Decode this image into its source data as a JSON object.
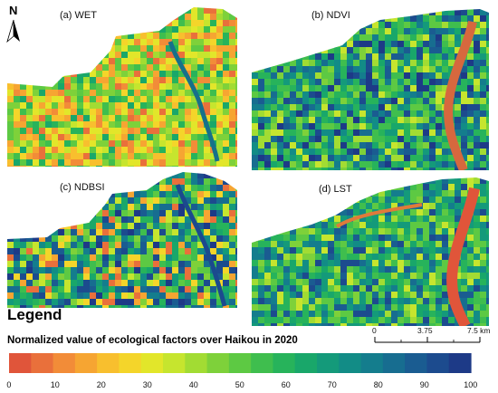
{
  "panels": [
    {
      "id": "wet",
      "label": "(a) WET",
      "palette": "warm"
    },
    {
      "id": "ndvi",
      "label": "(b) NDVI",
      "palette": "cool"
    },
    {
      "id": "ndbsi",
      "label": "(c) NDBSI",
      "palette": "mixed"
    },
    {
      "id": "lst",
      "label": "(d) LST",
      "palette": "green"
    }
  ],
  "north_arrow": {
    "label": "N"
  },
  "scale_bar": {
    "labels": [
      "0",
      "3.75",
      "7.5 km"
    ]
  },
  "legend": {
    "title": "Legend",
    "subtitle": "Normalized value of ecological factors over Haikou in 2020",
    "tick_labels": [
      "0",
      "10",
      "20",
      "30",
      "40",
      "50",
      "60",
      "70",
      "80",
      "90",
      "100"
    ],
    "colors": [
      "#e0553a",
      "#e9703b",
      "#f28c38",
      "#f6a532",
      "#f8bf2e",
      "#f4d52a",
      "#e2e62a",
      "#c6e52e",
      "#a2dc33",
      "#7ed13a",
      "#5dc943",
      "#3fbe4e",
      "#27b35b",
      "#19a76a",
      "#149a7a",
      "#128c86",
      "#147d8d",
      "#176d90",
      "#1a5c91",
      "#1c4b8e",
      "#1d3a87"
    ]
  }
}
